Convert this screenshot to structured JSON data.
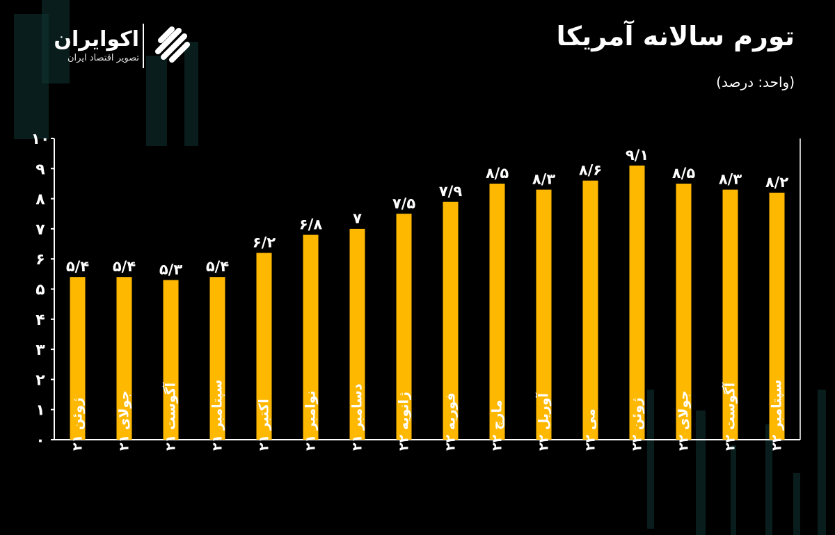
{
  "brand": {
    "name": "اکوایران",
    "tagline": "تصویر اقتصاد ایران",
    "logo_icon": "ekoiran-logo-icon"
  },
  "header": {
    "title": "تورم سالانه آمریکا",
    "unit_note": "(واحد: درصد)"
  },
  "colors": {
    "background": "#000000",
    "bar": "#FFB800",
    "axis": "#ffffff",
    "text": "#ffffff",
    "candles": "#0f3433"
  },
  "chart_data": {
    "type": "bar",
    "title": "تورم سالانه آمریکا",
    "unit": "(واحد: درصد)",
    "categories": [
      "ژوئن ۲۱",
      "جولای ۲۱",
      "آگوست ۲۱",
      "سپتامبر ۲۱",
      "اکتبر ۲۱",
      "نوامبر ۲۱",
      "دسامبر ۲۱",
      "ژانویه ۲۲",
      "فوریه ۲۲",
      "مارچ ۲۲",
      "آوریل ۲۲",
      "می ۲۲",
      "ژوئن ۲۲",
      "جولای ۲۲",
      "آگوست ۲۲",
      "سپتامبر ۲۲"
    ],
    "values": [
      5.4,
      5.4,
      5.3,
      5.4,
      6.2,
      6.8,
      7,
      7.5,
      7.9,
      8.5,
      8.3,
      8.6,
      9.1,
      8.5,
      8.3,
      8.2
    ],
    "value_labels": [
      "۵/۴",
      "۵/۴",
      "۵/۳",
      "۵/۴",
      "۶/۲",
      "۶/۸",
      "۷",
      "۷/۵",
      "۷/۹",
      "۸/۵",
      "۸/۳",
      "۸/۶",
      "۹/۱",
      "۸/۵",
      "۸/۳",
      "۸/۲"
    ],
    "yticks": [
      0,
      1,
      2,
      3,
      4,
      5,
      6,
      7,
      8,
      9,
      10
    ],
    "ytick_labels": [
      "۰",
      "۱",
      "۲",
      "۳",
      "۴",
      "۵",
      "۶",
      "۷",
      "۸",
      "۹",
      "۱۰"
    ],
    "ylim": [
      0,
      10
    ],
    "grid": false,
    "legend": "none"
  }
}
